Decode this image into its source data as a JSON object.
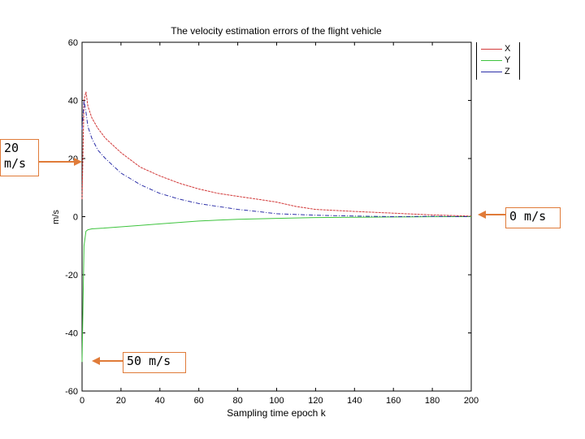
{
  "chart_data": {
    "type": "line",
    "title": "The velocity estimation errors of the flight vehicle",
    "xlabel": "Sampling time epoch k",
    "ylabel": "m/s",
    "xlim": [
      0,
      200
    ],
    "ylim": [
      -60,
      60
    ],
    "xticks": [
      "0",
      "20",
      "40",
      "60",
      "80",
      "100",
      "120",
      "140",
      "160",
      "180",
      "200"
    ],
    "yticks": [
      "60",
      "40",
      "20",
      "0",
      "-20",
      "-40",
      "-60"
    ],
    "legend_position": "top-right",
    "series": [
      {
        "name": "X",
        "color": "#d23a3a",
        "x": [
          0,
          1,
          2,
          3,
          5,
          8,
          12,
          16,
          20,
          25,
          30,
          40,
          50,
          60,
          70,
          80,
          90,
          100,
          110,
          120,
          140,
          160,
          180,
          200
        ],
        "y": [
          6,
          40,
          43,
          38,
          34,
          30.5,
          27,
          24.5,
          22,
          19.5,
          17,
          14,
          11.5,
          9.5,
          8,
          7,
          6,
          5,
          3.5,
          2.5,
          1.8,
          1.2,
          0.6,
          0.2
        ]
      },
      {
        "name": "Y",
        "color": "#3ec43e",
        "x": [
          0,
          1,
          2,
          3,
          5,
          10,
          20,
          30,
          40,
          50,
          60,
          70,
          80,
          100,
          120,
          140,
          160,
          180,
          200
        ],
        "y": [
          -50,
          -10,
          -5,
          -4.5,
          -4.2,
          -4,
          -3.5,
          -3,
          -2.5,
          -2,
          -1.5,
          -1.2,
          -0.9,
          -0.6,
          -0.3,
          -0.2,
          -0.1,
          0,
          0
        ]
      },
      {
        "name": "Z",
        "color": "#2c2fa8",
        "x": [
          0,
          1,
          2,
          3,
          5,
          8,
          12,
          16,
          20,
          25,
          30,
          40,
          50,
          60,
          70,
          80,
          90,
          100,
          120,
          140,
          160,
          180,
          200
        ],
        "y": [
          30,
          40,
          36,
          31,
          27,
          23,
          20,
          17.5,
          15,
          13,
          11,
          8,
          6,
          4.5,
          3.5,
          2.5,
          1.8,
          1,
          0.5,
          0.2,
          0,
          0.1,
          0
        ]
      }
    ]
  },
  "annotations": [
    {
      "id": "anno-20",
      "text": "20\nm/s"
    },
    {
      "id": "anno-0",
      "text": "0 m/s"
    },
    {
      "id": "anno-50",
      "text": "50 m/s"
    }
  ],
  "colors": {
    "arrow": "#e07b39",
    "axis": "#000000",
    "grid_tick": "#000000"
  }
}
